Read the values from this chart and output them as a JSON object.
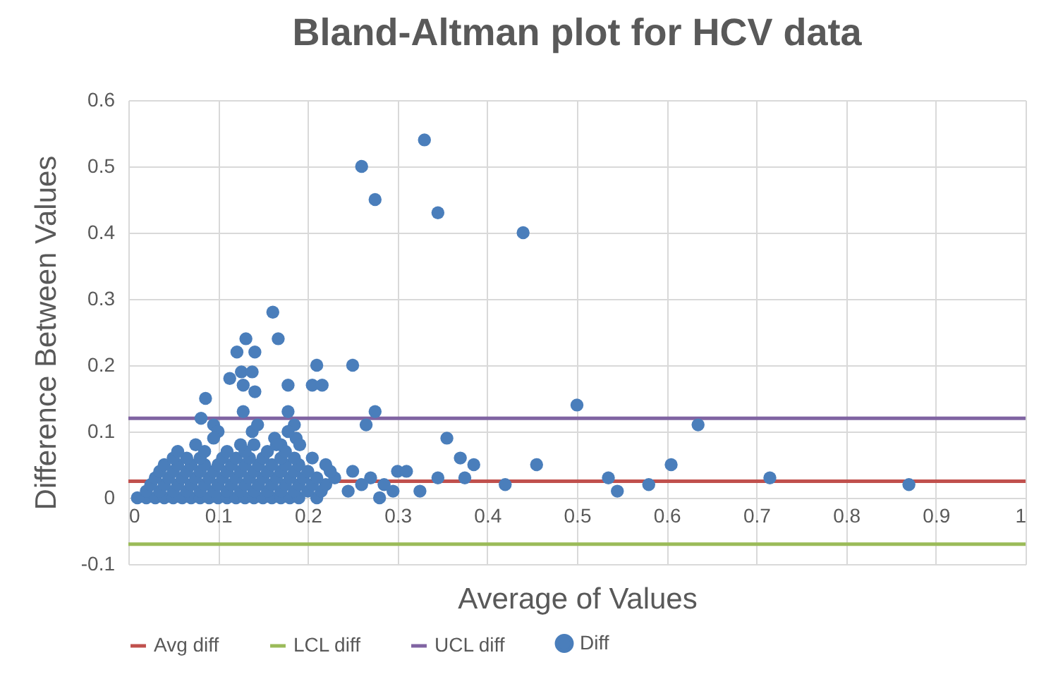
{
  "chart_data": {
    "type": "scatter",
    "title": "Bland-Altman plot for HCV data",
    "xlabel": "Average of Values",
    "ylabel": "Difference Between Values",
    "xlim": [
      0,
      1
    ],
    "xticks": [
      0,
      0.1,
      0.2,
      0.3,
      0.4,
      0.5,
      0.6,
      0.7,
      0.8,
      0.9,
      1
    ],
    "ylim": [
      -0.1,
      0.6
    ],
    "yticks": [
      -0.1,
      0,
      0.1,
      0.2,
      0.3,
      0.4,
      0.5,
      0.6
    ],
    "grid": true,
    "legend": "bottom",
    "series": [
      {
        "name": "Avg diff",
        "type": "line",
        "color": "#c0504d",
        "x": [
          0,
          1
        ],
        "values": [
          0.025,
          0.025
        ]
      },
      {
        "name": "LCL diff",
        "type": "line",
        "color": "#9bbb59",
        "x": [
          0,
          1
        ],
        "values": [
          -0.07,
          -0.07
        ]
      },
      {
        "name": "UCL diff",
        "type": "line",
        "color": "#8064a2",
        "x": [
          0,
          1
        ],
        "values": [
          0.12,
          0.12
        ]
      },
      {
        "name": "Diff",
        "color": "#4a7ebb",
        "marker": "circle",
        "x": [
          0.26,
          0.33,
          0.275,
          0.345,
          0.44,
          0.25,
          0.5,
          0.275,
          0.265,
          0.635,
          0.355,
          0.37,
          0.385,
          0.455,
          0.605,
          0.375,
          0.345,
          0.42,
          0.535,
          0.545,
          0.58,
          0.715,
          0.87,
          0.325,
          0.295,
          0.28,
          0.3,
          0.31,
          0.285,
          0.27,
          0.25,
          0.245,
          0.26,
          0.161,
          0.131,
          0.167,
          0.121,
          0.141,
          0.126,
          0.138,
          0.113,
          0.128,
          0.178,
          0.141,
          0.21,
          0.205,
          0.216,
          0.086,
          0.128,
          0.178,
          0.081,
          0.095,
          0.1,
          0.095,
          0.185,
          0.187,
          0.191,
          0.138,
          0.144,
          0.178,
          0.163,
          0.17,
          0.01,
          0.02,
          0.03,
          0.04,
          0.05,
          0.06,
          0.07,
          0.08,
          0.09,
          0.1,
          0.11,
          0.12,
          0.13,
          0.14,
          0.15,
          0.16,
          0.17,
          0.18,
          0.19,
          0.21,
          0.02,
          0.035,
          0.05,
          0.065,
          0.08,
          0.095,
          0.11,
          0.125,
          0.14,
          0.155,
          0.17,
          0.185,
          0.2,
          0.215,
          0.025,
          0.04,
          0.055,
          0.07,
          0.085,
          0.1,
          0.115,
          0.13,
          0.145,
          0.16,
          0.175,
          0.19,
          0.205,
          0.22,
          0.03,
          0.045,
          0.06,
          0.075,
          0.09,
          0.105,
          0.12,
          0.135,
          0.15,
          0.165,
          0.18,
          0.195,
          0.21,
          0.23,
          0.035,
          0.05,
          0.065,
          0.08,
          0.095,
          0.11,
          0.125,
          0.14,
          0.155,
          0.17,
          0.185,
          0.2,
          0.225,
          0.04,
          0.055,
          0.07,
          0.085,
          0.1,
          0.115,
          0.13,
          0.145,
          0.16,
          0.175,
          0.19,
          0.22,
          0.05,
          0.065,
          0.08,
          0.105,
          0.12,
          0.135,
          0.15,
          0.17,
          0.185,
          0.205,
          0.055,
          0.085,
          0.11,
          0.13,
          0.155,
          0.175,
          0.075,
          0.125,
          0.14,
          0.165
        ],
        "values": [
          0.5,
          0.54,
          0.45,
          0.43,
          0.4,
          0.2,
          0.14,
          0.13,
          0.11,
          0.11,
          0.09,
          0.06,
          0.05,
          0.05,
          0.05,
          0.03,
          0.03,
          0.02,
          0.03,
          0.01,
          0.02,
          0.03,
          0.02,
          0.01,
          0.01,
          0,
          0.04,
          0.04,
          0.02,
          0.03,
          0.04,
          0.01,
          0.02,
          0.28,
          0.24,
          0.24,
          0.22,
          0.22,
          0.19,
          0.19,
          0.18,
          0.17,
          0.17,
          0.16,
          0.2,
          0.17,
          0.17,
          0.15,
          0.13,
          0.13,
          0.12,
          0.11,
          0.1,
          0.09,
          0.11,
          0.09,
          0.08,
          0.1,
          0.11,
          0.1,
          0.09,
          0.08,
          0,
          0,
          0,
          0,
          0,
          0,
          0,
          0,
          0,
          0,
          0,
          0,
          0,
          0,
          0,
          0,
          0,
          0,
          0,
          0,
          0.01,
          0.01,
          0.01,
          0.01,
          0.01,
          0.01,
          0.01,
          0.01,
          0.01,
          0.01,
          0.01,
          0.01,
          0.01,
          0.01,
          0.02,
          0.02,
          0.02,
          0.02,
          0.02,
          0.02,
          0.02,
          0.02,
          0.02,
          0.02,
          0.02,
          0.02,
          0.02,
          0.02,
          0.03,
          0.03,
          0.03,
          0.03,
          0.03,
          0.03,
          0.03,
          0.03,
          0.03,
          0.03,
          0.03,
          0.03,
          0.03,
          0.03,
          0.04,
          0.04,
          0.04,
          0.04,
          0.04,
          0.04,
          0.04,
          0.04,
          0.04,
          0.04,
          0.04,
          0.04,
          0.04,
          0.05,
          0.05,
          0.05,
          0.05,
          0.05,
          0.05,
          0.05,
          0.05,
          0.05,
          0.05,
          0.05,
          0.05,
          0.06,
          0.06,
          0.06,
          0.06,
          0.06,
          0.06,
          0.06,
          0.06,
          0.06,
          0.06,
          0.07,
          0.07,
          0.07,
          0.07,
          0.07,
          0.07,
          0.08,
          0.08,
          0.08,
          0.08
        ]
      }
    ]
  }
}
